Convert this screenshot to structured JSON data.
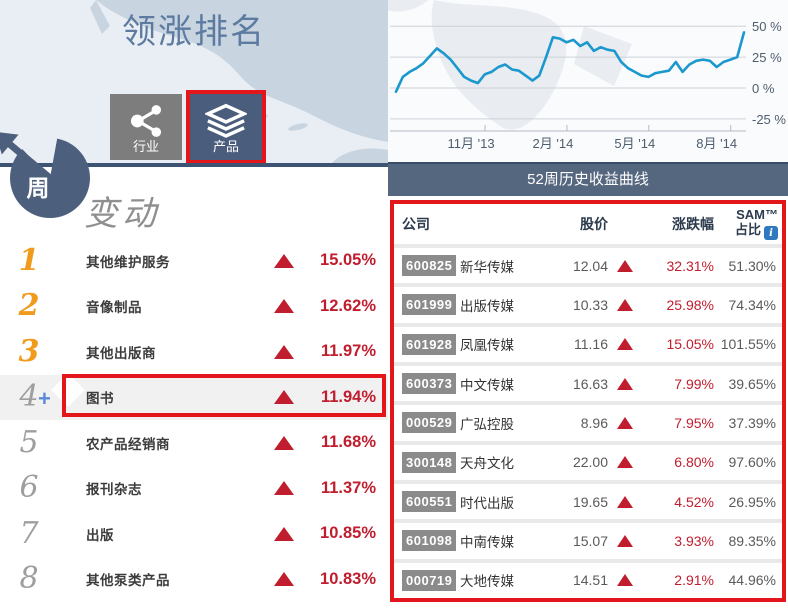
{
  "header": {
    "title": "领涨排名",
    "week_badge": "周",
    "tabs": [
      {
        "id": "industry",
        "label": "行业",
        "icon": "share-nodes-icon",
        "selected": false
      },
      {
        "id": "product",
        "label": "产品",
        "icon": "layers-icon",
        "selected": true
      }
    ]
  },
  "ranking": {
    "heading": "变动",
    "add_marker": "+",
    "items": [
      {
        "rank": "1",
        "label": "其他维护服务",
        "change": "15.05%",
        "highlighted": false
      },
      {
        "rank": "2",
        "label": "音像制品",
        "change": "12.62%",
        "highlighted": false
      },
      {
        "rank": "3",
        "label": "其他出版商",
        "change": "11.97%",
        "highlighted": false
      },
      {
        "rank": "4",
        "label": "图书",
        "change": "11.94%",
        "highlighted": true
      },
      {
        "rank": "5",
        "label": "农产品经销商",
        "change": "11.68%",
        "highlighted": false
      },
      {
        "rank": "6",
        "label": "报刊杂志",
        "change": "11.37%",
        "highlighted": false
      },
      {
        "rank": "7",
        "label": "出版",
        "change": "10.85%",
        "highlighted": false
      },
      {
        "rank": "8",
        "label": "其他泵类产品",
        "change": "10.83%",
        "highlighted": false
      }
    ]
  },
  "chart_caption": "52周历史收益曲线",
  "chart_data": {
    "type": "line",
    "title": "52周历史收益曲线",
    "unit": "percent_return",
    "x_desc": "52 weekly points, approx Sep '13 to Sep '14",
    "values": [
      -3,
      9,
      13,
      16,
      20,
      26,
      32,
      28,
      23,
      16,
      9,
      6,
      4,
      11,
      13,
      17,
      19,
      15,
      14,
      10,
      6,
      10,
      25,
      41,
      40,
      37,
      39,
      34,
      37,
      30,
      33,
      31,
      30,
      21,
      16,
      13,
      10,
      9,
      12,
      13,
      14,
      21,
      13,
      19,
      22,
      23,
      22,
      17,
      21,
      23,
      25,
      45
    ],
    "yticks": [
      {
        "v": 50,
        "label": "50 %"
      },
      {
        "v": 25,
        "label": "25 %"
      },
      {
        "v": 0,
        "label": "0 %"
      },
      {
        "v": -25,
        "label": "-25 %"
      }
    ],
    "xticks": [
      {
        "i": 11,
        "label": "11月 '13"
      },
      {
        "i": 23,
        "label": "2月 '14"
      },
      {
        "i": 35,
        "label": "5月 '14"
      },
      {
        "i": 47,
        "label": "8月 '14"
      }
    ],
    "ylim": [
      -30,
      55
    ],
    "grid": true,
    "legend": false,
    "line_color": "#1b98ce"
  },
  "table": {
    "headers": {
      "company": "公司",
      "price": "股价",
      "change": "涨跌幅",
      "sam1": "SAM™",
      "sam2": "占比"
    },
    "info_icon_label": "i",
    "rows": [
      {
        "code": "600825",
        "name": "新华传媒",
        "price": "12.04",
        "change": "32.31%",
        "sam": "51.30%"
      },
      {
        "code": "601999",
        "name": "出版传媒",
        "price": "10.33",
        "change": "25.98%",
        "sam": "74.34%"
      },
      {
        "code": "601928",
        "name": "凤凰传媒",
        "price": "11.16",
        "change": "15.05%",
        "sam": "101.55%"
      },
      {
        "code": "600373",
        "name": "中文传媒",
        "price": "16.63",
        "change": "7.99%",
        "sam": "39.65%"
      },
      {
        "code": "000529",
        "name": "广弘控股",
        "price": "8.96",
        "change": "7.95%",
        "sam": "37.39%"
      },
      {
        "code": "300148",
        "name": "天舟文化",
        "price": "22.00",
        "change": "6.80%",
        "sam": "97.60%"
      },
      {
        "code": "600551",
        "name": "时代出版",
        "price": "19.65",
        "change": "4.52%",
        "sam": "26.95%"
      },
      {
        "code": "601098",
        "name": "中南传媒",
        "price": "15.07",
        "change": "3.93%",
        "sam": "89.35%"
      },
      {
        "code": "000719",
        "name": "大地传媒",
        "price": "14.51",
        "change": "2.91%",
        "sam": "44.96%"
      }
    ]
  },
  "colors": {
    "annotation_red": "#e3161c",
    "rank_up_red": "#c01d2e",
    "rank_orange": "#f09b1c",
    "navy": "#4c5f7d",
    "banner_blue": "#55667f",
    "chart_line_blue": "#1b98ce",
    "code_badge_gray": "#8b8b8b",
    "title_blue": "#5d7ba1"
  }
}
